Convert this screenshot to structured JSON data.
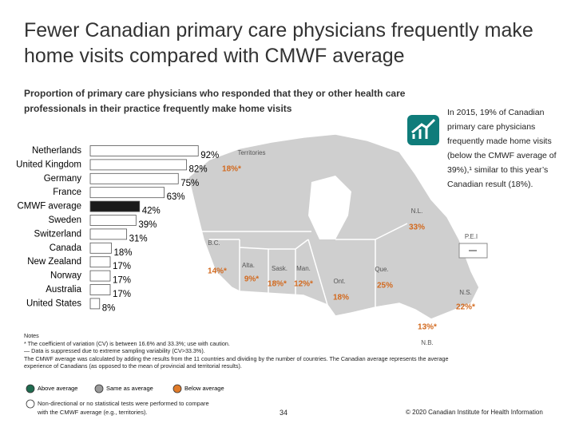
{
  "header": {
    "title": "Fewer Canadian primary care physicians frequently make home visits compared with CMWF average",
    "subtitle": "Proportion of primary care physicians who responded that they or other health care professionals in their practice frequently make home visits"
  },
  "chart_data": {
    "type": "bar",
    "orientation": "horizontal",
    "categories": [
      "Netherlands",
      "United Kingdom",
      "Germany",
      "France",
      "CMWF average",
      "Sweden",
      "Switzerland",
      "Canada",
      "New Zealand",
      "Norway",
      "Australia",
      "United States"
    ],
    "values": [
      92,
      82,
      75,
      63,
      42,
      39,
      31,
      18,
      17,
      17,
      17,
      8
    ],
    "value_labels": [
      "92%",
      "82%",
      "75%",
      "63%",
      "42%",
      "39%",
      "31%",
      "18%",
      "17%",
      "17%",
      "17%",
      "8%"
    ],
    "colors": [
      "#ffffff",
      "#ffffff",
      "#ffffff",
      "#ffffff",
      "#1a1a1a",
      "#ffffff",
      "#ffffff",
      "#ffffff",
      "#ffffff",
      "#ffffff",
      "#ffffff",
      "#ffffff"
    ]
  },
  "map": {
    "label_color": "#d2691e",
    "regions": [
      {
        "name": "Territories",
        "value": 18,
        "value_label": "18%*"
      },
      {
        "name": "B.C.",
        "value": 14,
        "value_label": "14%*"
      },
      {
        "name": "Alta.",
        "value": 9,
        "value_label": "9%*"
      },
      {
        "name": "Sask.",
        "value": 18,
        "value_label": "18%*"
      },
      {
        "name": "Man.",
        "value": 12,
        "value_label": "12%*"
      },
      {
        "name": "Ont.",
        "value": 18,
        "value_label": "18%"
      },
      {
        "name": "Que.",
        "value": 25,
        "value_label": "25%"
      },
      {
        "name": "N.L.",
        "value": 33,
        "value_label": "33%"
      },
      {
        "name": "P.E.I",
        "value": null,
        "value_label": "—"
      },
      {
        "name": "N.S.",
        "value": 22,
        "value_label": "22%*"
      },
      {
        "name": "N.B.",
        "value": 13,
        "value_label": "13%*"
      }
    ]
  },
  "callout": "In 2015, 19% of Canadian primary care physicians frequently made home visits (below the CMWF average of 39%),¹ similar to this year’s Canadian result (18%).",
  "notes": {
    "heading": "Notes",
    "lines": [
      "* The coefficient of variation (CV) is between 16.6% and 33.3%; use with caution.",
      "— Data is suppressed due to extreme sampling variability (CV>33.3%).",
      "The CMWF average was calculated by adding the results from the 11 countries and dividing by the number of countries. The Canadian average represents the average experience of Canadians (as opposed to the mean of provincial and territorial results)."
    ]
  },
  "legend": [
    {
      "label": "Above average",
      "color": "#1f6b4f"
    },
    {
      "label": "Same as average",
      "color": "#9a9a9a"
    },
    {
      "label": "Below average",
      "color": "#e07b2a"
    },
    {
      "label": "Non-directional or no statistical tests were performed to compare with the CMWF average (e.g., territories).",
      "color": "#ffffff"
    }
  ],
  "footer": {
    "page": 34,
    "copyright": "© 2020 Canadian Institute for Health Information"
  }
}
